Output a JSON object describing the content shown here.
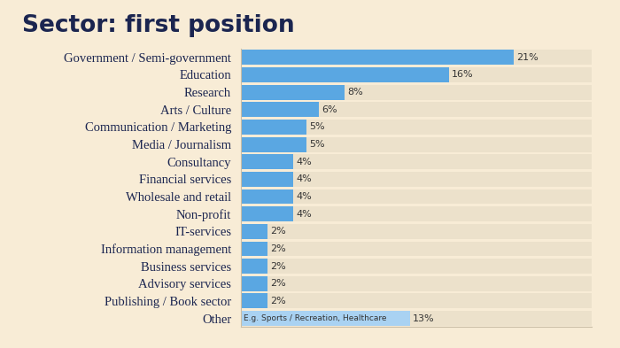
{
  "chart_data": {
    "type": "bar",
    "orientation": "horizontal",
    "title": "Sector: first position",
    "categories": [
      "Government / Semi-government",
      "Education",
      "Research",
      "Arts / Culture",
      "Communication / Marketing",
      "Media / Journalism",
      "Consultancy",
      "Financial services",
      "Wholesale and retail",
      "Non-profit",
      "IT-services",
      "Information management",
      "Business services",
      "Advisory services",
      "Publishing / Book sector",
      "Other"
    ],
    "values": [
      21,
      16,
      8,
      6,
      5,
      5,
      4,
      4,
      4,
      4,
      2,
      2,
      2,
      2,
      2,
      13
    ],
    "value_labels": [
      "21%",
      "16%",
      "8%",
      "6%",
      "5%",
      "5%",
      "4%",
      "4%",
      "4%",
      "4%",
      "2%",
      "2%",
      "2%",
      "2%",
      "2%",
      "13%"
    ],
    "colors": [
      "#5aa7e2",
      "#5aa7e2",
      "#5aa7e2",
      "#5aa7e2",
      "#5aa7e2",
      "#5aa7e2",
      "#5aa7e2",
      "#5aa7e2",
      "#5aa7e2",
      "#5aa7e2",
      "#5aa7e2",
      "#5aa7e2",
      "#5aa7e2",
      "#5aa7e2",
      "#5aa7e2",
      "#a9d2f2"
    ],
    "annotations": [
      {
        "category": "Other",
        "text": "E.g. Sports / Recreation, Healthcare"
      }
    ],
    "xlim": [
      0,
      27
    ],
    "xticks": [],
    "data_labels": true,
    "tick_labels": "y",
    "grid": false
  }
}
